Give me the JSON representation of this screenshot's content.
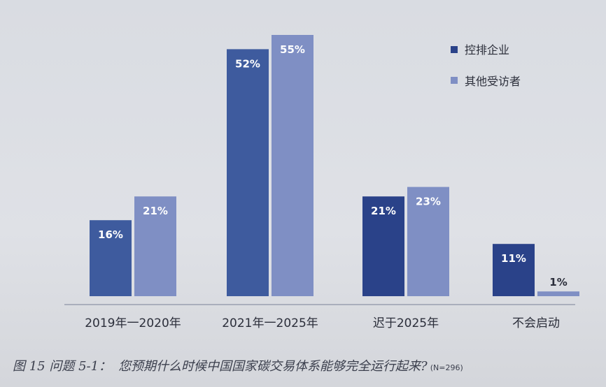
{
  "chart_data": {
    "type": "bar",
    "categories": [
      "2019年一2020年",
      "2021年一2025年",
      "迟于2025年",
      "不会启动"
    ],
    "series": [
      {
        "name": "控排企业",
        "values": [
          16,
          52,
          21,
          11
        ],
        "labels": [
          "16%",
          "52%",
          "21%",
          "11%"
        ],
        "color": "#3e5b9e",
        "highlight_color": "#2a4289"
      },
      {
        "name": "其他受访者",
        "values": [
          21,
          55,
          23,
          1
        ],
        "labels": [
          "21%",
          "55%",
          "23%",
          "1%"
        ],
        "color": "#7f8fc4"
      }
    ],
    "ylim": [
      0,
      55
    ],
    "grid": false,
    "legend_position": "top-right"
  },
  "caption": {
    "figure": "图 15 问题 5-1：",
    "question": "您预期什么时候中国国家碳交易体系能够完全运行起来?",
    "note": "(N=296)"
  }
}
